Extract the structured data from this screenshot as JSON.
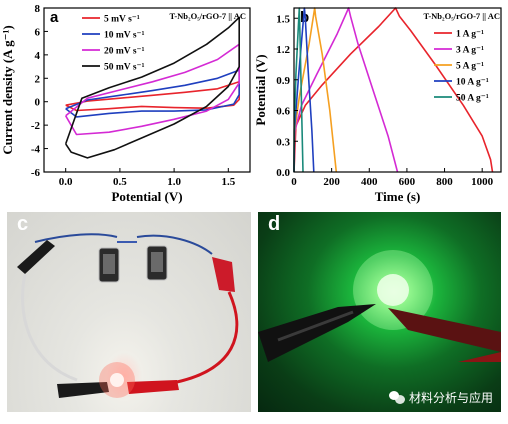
{
  "chart_data": [
    {
      "panel": "a",
      "type": "line",
      "xlabel": "Potential (V)",
      "ylabel": "Current density (A g⁻¹)",
      "xlim": [
        -0.2,
        1.7
      ],
      "ylim": [
        -6,
        8
      ],
      "xticks": [
        0.0,
        0.5,
        1.0,
        1.5
      ],
      "yticks": [
        -6,
        -4,
        -2,
        0,
        2,
        4,
        6,
        8
      ],
      "legend_title": "T-Nb₂O₅/rGO-7 || AC",
      "legend_position": "top",
      "series": [
        {
          "name": "5 mV s⁻¹",
          "color": "#e8242c",
          "x": [
            0.0,
            0.2,
            0.5,
            0.8,
            1.1,
            1.4,
            1.6,
            1.6,
            1.55,
            1.3,
            1.0,
            0.7,
            0.4,
            0.1,
            0.0
          ],
          "y": [
            -0.3,
            0.05,
            0.3,
            0.55,
            0.8,
            1.1,
            1.7,
            0.2,
            -0.3,
            -0.55,
            -0.5,
            -0.4,
            -0.6,
            -0.75,
            -0.3
          ]
        },
        {
          "name": "10 mV s⁻¹",
          "color": "#1f3fbf",
          "x": [
            0.0,
            0.2,
            0.5,
            0.8,
            1.1,
            1.4,
            1.6,
            1.6,
            1.55,
            1.3,
            1.0,
            0.7,
            0.4,
            0.1,
            0.0
          ],
          "y": [
            -0.6,
            0.15,
            0.55,
            0.95,
            1.4,
            2.0,
            2.7,
            0.6,
            -0.2,
            -0.7,
            -0.8,
            -0.8,
            -1.0,
            -1.3,
            -0.6
          ]
        },
        {
          "name": "20 mV s⁻¹",
          "color": "#d42ad4",
          "x": [
            0.0,
            0.2,
            0.5,
            0.8,
            1.1,
            1.4,
            1.6,
            1.6,
            1.5,
            1.3,
            1.0,
            0.7,
            0.4,
            0.1,
            0.0
          ],
          "y": [
            -1.2,
            0.3,
            1.0,
            1.7,
            2.5,
            3.6,
            4.9,
            1.6,
            0.2,
            -0.8,
            -1.5,
            -2.1,
            -2.6,
            -2.8,
            -1.2
          ]
        },
        {
          "name": "50 mV s⁻¹",
          "color": "#111111",
          "x": [
            0.0,
            0.15,
            0.4,
            0.7,
            1.0,
            1.3,
            1.5,
            1.6,
            1.6,
            1.5,
            1.3,
            1.0,
            0.7,
            0.45,
            0.2,
            0.05,
            0.0
          ],
          "y": [
            -3.6,
            0.3,
            1.2,
            2.1,
            3.3,
            4.9,
            6.3,
            7.2,
            3.0,
            1.3,
            -0.4,
            -1.9,
            -3.1,
            -4.1,
            -4.8,
            -4.3,
            -3.6
          ]
        }
      ]
    },
    {
      "panel": "b",
      "type": "line",
      "xlabel": "Time (s)",
      "ylabel": "Potential (V)",
      "xlim": [
        0,
        1100
      ],
      "ylim": [
        0.0,
        1.6
      ],
      "xticks": [
        0,
        200,
        400,
        600,
        800,
        1000
      ],
      "yticks": [
        0.0,
        0.3,
        0.6,
        0.9,
        1.2,
        1.5
      ],
      "legend_title": "T-Nb₂O₅/rGO-7 || AC",
      "legend_position": "right",
      "series": [
        {
          "name": "1 A g⁻¹",
          "color": "#e8242c",
          "x": [
            0,
            10,
            60,
            150,
            300,
            450,
            540,
            560,
            620,
            750,
            900,
            1000,
            1045,
            1055
          ],
          "y": [
            0.0,
            0.45,
            0.65,
            0.85,
            1.15,
            1.42,
            1.6,
            1.52,
            1.38,
            1.05,
            0.65,
            0.35,
            0.12,
            0.0
          ]
        },
        {
          "name": "3 A g⁻¹",
          "color": "#d42ad4",
          "x": [
            0,
            5,
            40,
            120,
            230,
            290,
            300,
            340,
            420,
            500,
            550
          ],
          "y": [
            0.0,
            0.4,
            0.65,
            0.95,
            1.35,
            1.6,
            1.52,
            1.25,
            0.8,
            0.35,
            0.0
          ]
        },
        {
          "name": "5 A g⁻¹",
          "color": "#f5a021",
          "x": [
            0,
            3,
            30,
            80,
            110,
            115,
            150,
            190,
            225
          ],
          "y": [
            0.0,
            0.4,
            0.75,
            1.25,
            1.6,
            1.52,
            1.15,
            0.6,
            0.0
          ]
        },
        {
          "name": "10 A g⁻¹",
          "color": "#1f3fbf",
          "x": [
            0,
            2,
            25,
            55,
            60,
            75,
            95,
            105
          ],
          "y": [
            0.0,
            0.4,
            0.95,
            1.6,
            1.5,
            1.0,
            0.4,
            0.0
          ]
        },
        {
          "name": "50 A g⁻¹",
          "color": "#1a8a7a",
          "x": [
            0,
            1,
            10,
            28,
            30,
            38,
            48
          ],
          "y": [
            0.0,
            0.4,
            0.95,
            1.6,
            1.5,
            0.8,
            0.0
          ]
        }
      ]
    }
  ],
  "photos": {
    "c": {
      "letter": "c"
    },
    "d": {
      "letter": "d"
    }
  },
  "watermark": {
    "text": "材料分析与应用",
    "icon": "wechat-icon"
  }
}
